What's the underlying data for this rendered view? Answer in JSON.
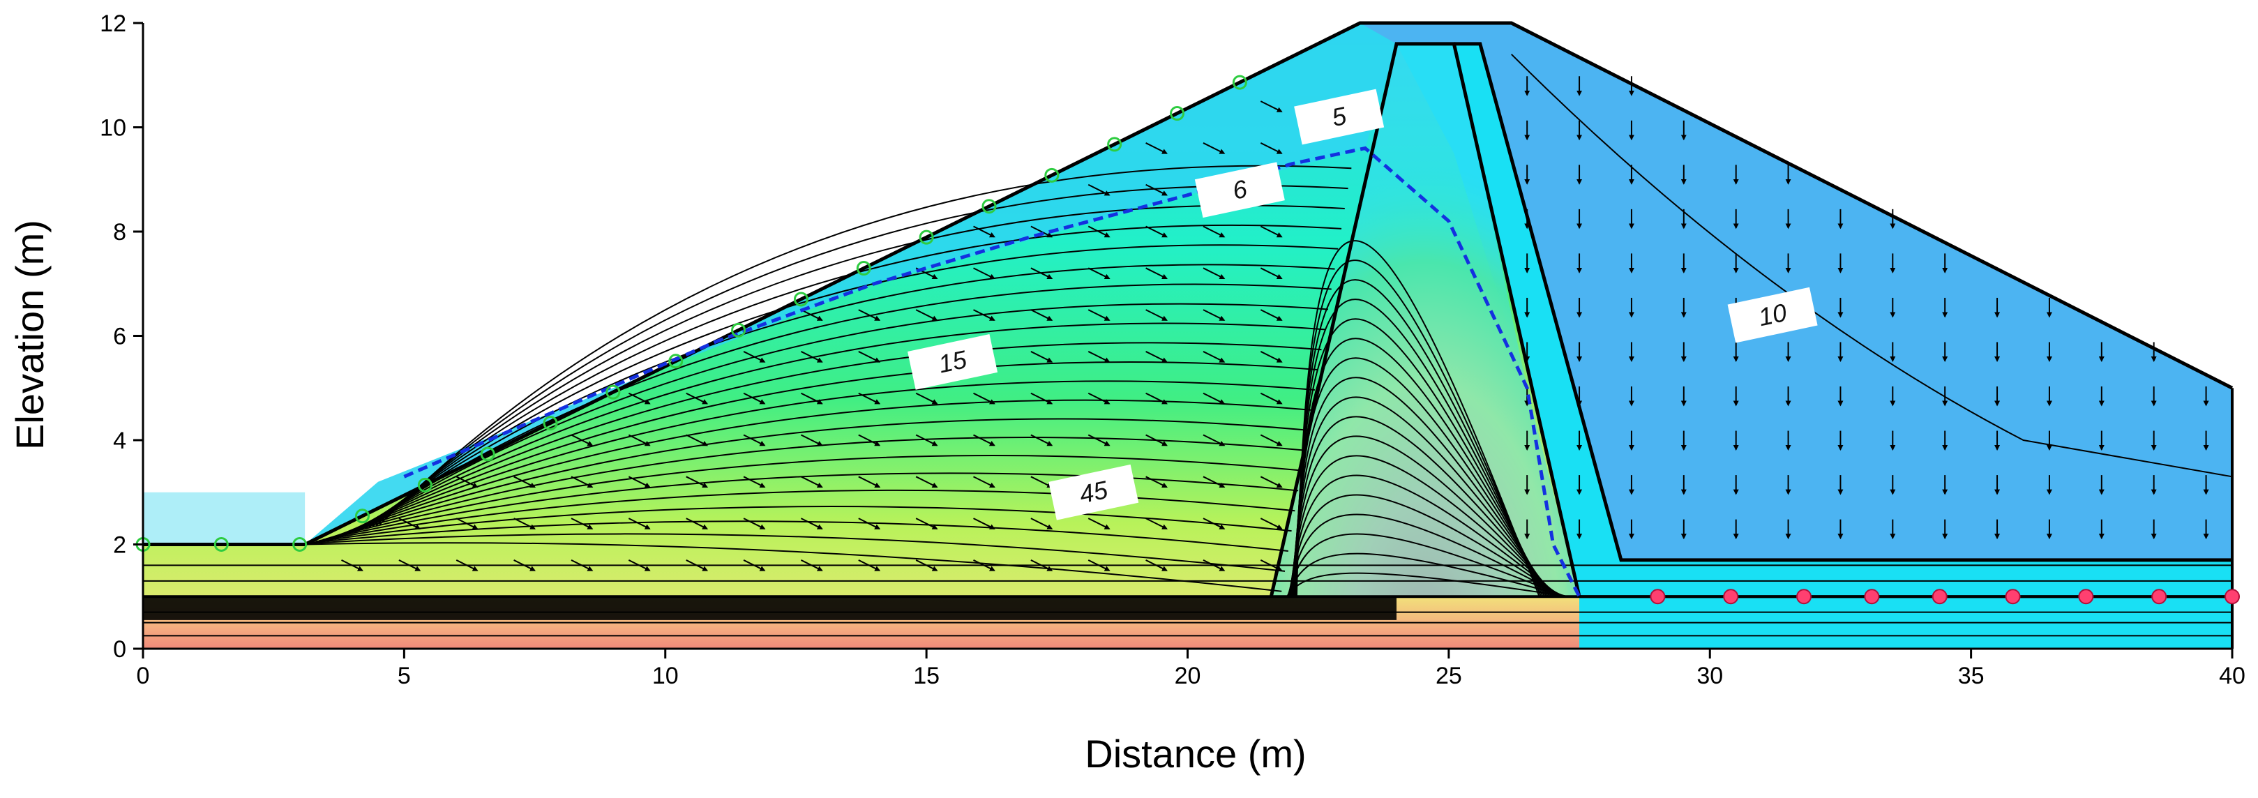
{
  "chart_data": {
    "type": "area",
    "title": "",
    "xlabel": "Distance (m)",
    "ylabel": "Elevation (m)",
    "xlim": [
      0,
      40
    ],
    "ylim": [
      0,
      12
    ],
    "xticks": [
      0,
      5,
      10,
      15,
      20,
      25,
      30,
      35,
      40
    ],
    "yticks": [
      0,
      2,
      4,
      6,
      8,
      10,
      12
    ],
    "grid": false,
    "legend": "none",
    "dam_outline": {
      "x": [
        0,
        3.1,
        23.3,
        26.2,
        40,
        40,
        0
      ],
      "y": [
        2,
        2,
        12,
        12,
        5,
        0,
        0
      ]
    },
    "core_outline": {
      "x": [
        21.6,
        24.0,
        25.1,
        27.5
      ],
      "y": [
        1.0,
        11.6,
        11.6,
        1.0
      ]
    },
    "drain_outline": {
      "x": [
        25.1,
        25.6,
        28.3,
        40
      ],
      "y": [
        11.6,
        11.6,
        1.7,
        1.7
      ]
    },
    "foundation_top_elevation": 1.0,
    "reservoir_level": 3.0,
    "phreatic_line": {
      "x": [
        5,
        8,
        11,
        14,
        17,
        20,
        22,
        23.4,
        25,
        26.5,
        27.0,
        27.5
      ],
      "y": [
        3.3,
        4.6,
        5.9,
        7.0,
        7.9,
        8.7,
        9.3,
        9.6,
        8.2,
        5.0,
        2.0,
        1.0
      ]
    },
    "contour_labels": [
      {
        "text": "5",
        "x": 22.9,
        "y": 10.2
      },
      {
        "text": "6",
        "x": 21.0,
        "y": 8.8
      },
      {
        "text": "15",
        "x": 15.5,
        "y": 5.5
      },
      {
        "text": "45",
        "x": 18.2,
        "y": 3.0
      },
      {
        "text": "10",
        "x": 31.2,
        "y": 6.4
      }
    ],
    "pressure_head_color_scale": [
      "#00e5ff",
      "#26f0c0",
      "#3cf08a",
      "#8af04a",
      "#d8f068",
      "#f6e07a",
      "#f4ae80",
      "#f08a7a"
    ],
    "region_colors": {
      "reservoir": "#aeeef8",
      "upstream_shell": "#2fd6f0",
      "core": "#3bdcf6",
      "downstream_shell": "#4cb4f2",
      "drain_blanket": "#19e0f4"
    },
    "seepage_face_points_x": [
      0,
      1.5,
      3.0,
      4.2,
      5.4,
      6.6,
      7.8,
      9.0,
      10.2,
      11.4,
      12.6,
      13.8,
      15.0,
      16.2,
      17.4,
      18.6,
      19.8,
      21.0
    ],
    "drain_node_points_x": [
      29,
      30.4,
      31.8,
      33.1,
      34.4,
      35.8,
      37.2,
      38.6,
      40
    ]
  }
}
